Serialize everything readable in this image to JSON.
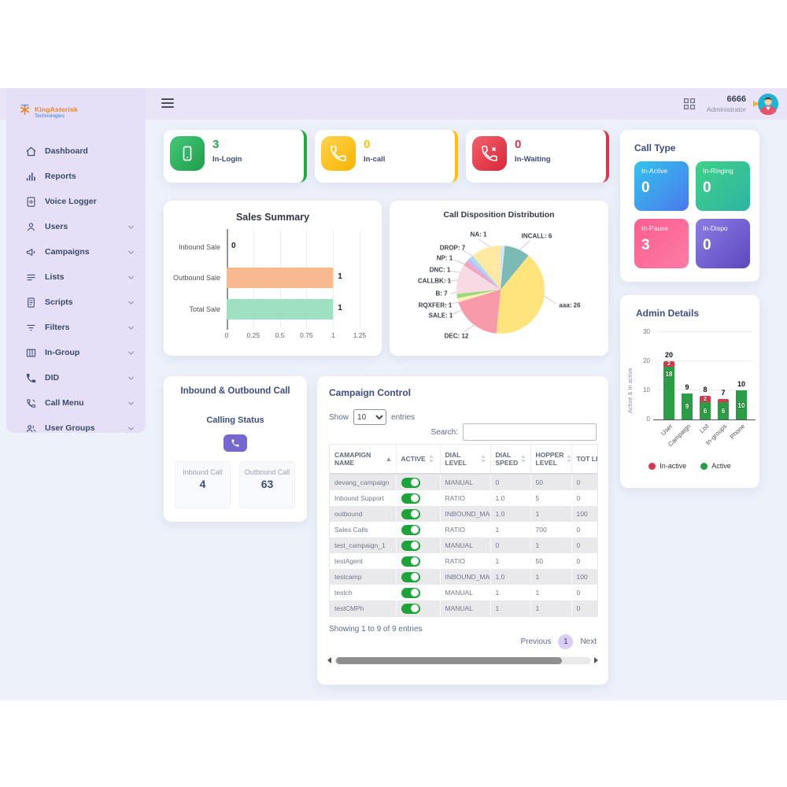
{
  "topbar": {
    "user_id": "6666",
    "user_role": "Administrator"
  },
  "sidebar": {
    "logo": {
      "brand": "KingAsterisk",
      "sub": "Technologies"
    },
    "items": [
      {
        "label": "Dashboard",
        "icon": "home",
        "expandable": false
      },
      {
        "label": "Reports",
        "icon": "bar-chart",
        "expandable": false
      },
      {
        "label": "Voice Logger",
        "icon": "voice-file",
        "expandable": false
      },
      {
        "label": "Users",
        "icon": "user",
        "expandable": true
      },
      {
        "label": "Campaigns",
        "icon": "megaphone",
        "expandable": true
      },
      {
        "label": "Lists",
        "icon": "list",
        "expandable": true
      },
      {
        "label": "Scripts",
        "icon": "document",
        "expandable": true
      },
      {
        "label": "Filters",
        "icon": "filter",
        "expandable": true
      },
      {
        "label": "In-Group",
        "icon": "columns",
        "expandable": true
      },
      {
        "label": "DID",
        "icon": "phone",
        "expandable": true
      },
      {
        "label": "Call Menu",
        "icon": "phone-call",
        "expandable": true
      },
      {
        "label": "User Groups",
        "icon": "user-group",
        "expandable": true
      }
    ]
  },
  "stats": [
    {
      "label": "In-Login",
      "value": "3",
      "accent": "#28a745",
      "tile_from": "#43c878",
      "tile_to": "#1f9e4a",
      "icon": "mobile-icon"
    },
    {
      "label": "In-call",
      "value": "0",
      "accent": "#ffc107",
      "tile_from": "#ffd34e",
      "tile_to": "#f5b400",
      "icon": "phone-icon"
    },
    {
      "label": "In-Waiting",
      "value": "0",
      "accent": "#dc3545",
      "tile_from": "#f2606c",
      "tile_to": "#d92638",
      "icon": "phone-x-icon"
    }
  ],
  "call_type": {
    "title": "Call Type",
    "tiles": [
      {
        "label": "In-Active",
        "value": "0",
        "from": "#33c3ea",
        "to": "#4b79f0"
      },
      {
        "label": "In-Ringing",
        "value": "0",
        "from": "#3ed287",
        "to": "#2fb3a4"
      },
      {
        "label": "In-Pause",
        "value": "3",
        "from": "#fd5e92",
        "to": "#fb7ca5"
      },
      {
        "label": "In-Dispo",
        "value": "0",
        "from": "#8d7ce4",
        "to": "#5d48c0"
      }
    ]
  },
  "calling": {
    "title": "Inbound & Outbound Call",
    "status_label": "Calling Status",
    "boxes": [
      {
        "label": "Inbound Call",
        "value": "4"
      },
      {
        "label": "Outbound Call",
        "value": "63"
      }
    ]
  },
  "campaign": {
    "title": "Campaign Control",
    "controls": {
      "show_label": "Show",
      "page_size": "10",
      "entries_label": "entries",
      "search_label": "Search:"
    },
    "columns": [
      "CAMAPIGN NAME",
      "ACTIVE",
      "DIAL LEVEL",
      "DIAL SPEED",
      "HOPPER LEVEL",
      "TOT LEA"
    ],
    "rows": [
      {
        "name": "devang_campaign",
        "active": true,
        "dial_level": "MANUAL",
        "dial_speed": "0",
        "hopper_level": "50",
        "total_lead": "0"
      },
      {
        "name": "Inbound Support",
        "active": true,
        "dial_level": "RATIO",
        "dial_speed": "1.0",
        "hopper_level": "5",
        "total_lead": "0"
      },
      {
        "name": "outbound",
        "active": true,
        "dial_level": "INBOUND_MAN",
        "dial_speed": "1.0",
        "hopper_level": "1",
        "total_lead": "100"
      },
      {
        "name": "Sales Calls",
        "active": true,
        "dial_level": "RATIO",
        "dial_speed": "1",
        "hopper_level": "700",
        "total_lead": "0"
      },
      {
        "name": "test_campaign_1",
        "active": true,
        "dial_level": "MANUAL",
        "dial_speed": "0",
        "hopper_level": "1",
        "total_lead": "0"
      },
      {
        "name": "testAgent",
        "active": true,
        "dial_level": "RATIO",
        "dial_speed": "1",
        "hopper_level": "50",
        "total_lead": "0"
      },
      {
        "name": "testcamp",
        "active": true,
        "dial_level": "INBOUND_MAN",
        "dial_speed": "1.0",
        "hopper_level": "1",
        "total_lead": "100"
      },
      {
        "name": "testch",
        "active": true,
        "dial_level": "MANUAL",
        "dial_speed": "1",
        "hopper_level": "1",
        "total_lead": "0"
      },
      {
        "name": "testCMPh",
        "active": true,
        "dial_level": "MANUAL",
        "dial_speed": "1",
        "hopper_level": "1",
        "total_lead": "0"
      }
    ],
    "footer_summary": "Showing 1 to 9 of 9 entries",
    "pagination": {
      "previous": "Previous",
      "page": "1",
      "next": "Next"
    }
  },
  "chart_data": [
    {
      "id": "sales-summary",
      "type": "bar",
      "orientation": "horizontal",
      "title": "Sales Summary",
      "categories": [
        "Inbound Sale",
        "Outbound Sale",
        "Total Sale"
      ],
      "values": [
        0,
        1,
        1
      ],
      "bar_colors": [
        "#f9b98e",
        "#f9b98e",
        "#9fe0c0"
      ],
      "xticks": [
        0,
        0.25,
        0.5,
        0.75,
        1,
        1.25
      ],
      "xlim": [
        0,
        1.25
      ],
      "grid": true
    },
    {
      "id": "call-disposition",
      "type": "pie",
      "title": "Call Disposition Distribution",
      "slices": [
        {
          "label": "NA",
          "value": 1,
          "color": "#d5e6ec"
        },
        {
          "label": "INCALL",
          "value": 6,
          "color": "#7cbab6"
        },
        {
          "label": "aaa",
          "value": 26,
          "color": "#ffe37c"
        },
        {
          "label": "DEC",
          "value": 12,
          "color": "#f89aa9"
        },
        {
          "label": "SALE",
          "value": 1,
          "color": "#fdeebb"
        },
        {
          "label": "RQXFER",
          "value": 1,
          "color": "#9bdb78"
        },
        {
          "label": "B",
          "value": 7,
          "color": "#f8dae4"
        },
        {
          "label": "CALLBK",
          "value": 1,
          "color": "#f2a6bb"
        },
        {
          "label": "DNC",
          "value": 1,
          "color": "#cab9ef"
        },
        {
          "label": "NP",
          "value": 1,
          "color": "#aedaf1"
        },
        {
          "label": "DROP",
          "value": 7,
          "color": "#ffe9a2"
        }
      ]
    },
    {
      "id": "admin-details",
      "type": "bar",
      "stacked": true,
      "title": "Admin Details",
      "categories": [
        "User",
        "Campaign",
        "List",
        "In-groups",
        "Phone"
      ],
      "series": [
        {
          "name": "In-active",
          "color": "#d6394d",
          "values": [
            2,
            0,
            2,
            1,
            0
          ]
        },
        {
          "name": "Active",
          "color": "#2b9e45",
          "values": [
            18,
            9,
            6,
            6,
            10
          ]
        }
      ],
      "totals": [
        20,
        9,
        8,
        7,
        10
      ],
      "ylabel": "Active & In active",
      "yticks": [
        0,
        10,
        20,
        30
      ],
      "ylim": [
        0,
        30
      ],
      "legend_position": "bottom"
    }
  ]
}
